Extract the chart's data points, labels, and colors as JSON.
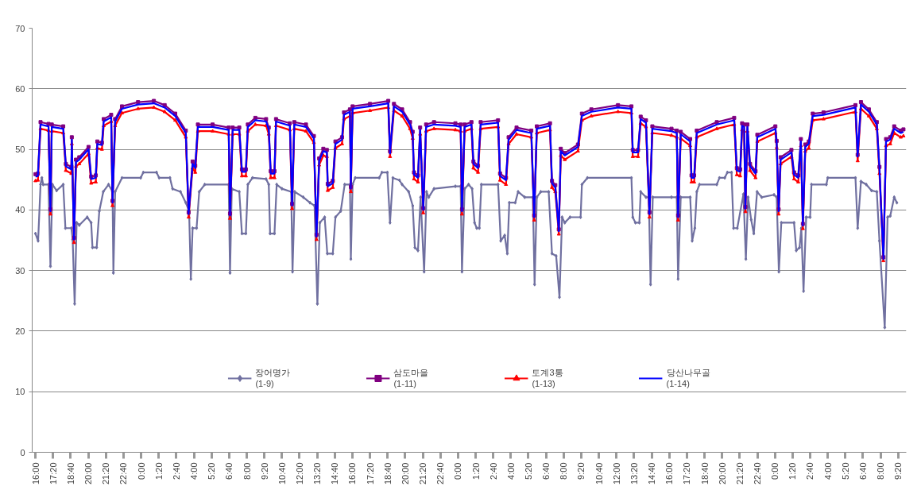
{
  "chart_data": {
    "type": "line",
    "xlim": [
      "2000-01-01T15:45",
      "2000-01-04T09:57"
    ],
    "xticks": [
      {
        "value": "2000-01-01T16:00",
        "label": "16:00"
      },
      {
        "value": "2000-01-01T17:20",
        "label": "17:20"
      },
      {
        "value": "2000-01-01T18:40",
        "label": "18:40"
      },
      {
        "value": "2000-01-01T20:00",
        "label": "20:00"
      },
      {
        "value": "2000-01-01T21:20",
        "label": "21:20"
      },
      {
        "value": "2000-01-01T22:40",
        "label": "22:40"
      },
      {
        "value": "2000-01-02T00:00",
        "label": "0:00"
      },
      {
        "value": "2000-01-02T01:20",
        "label": "1:20"
      },
      {
        "value": "2000-01-02T02:40",
        "label": "2:40"
      },
      {
        "value": "2000-01-02T04:00",
        "label": "4:00"
      },
      {
        "value": "2000-01-02T05:20",
        "label": "5:20"
      },
      {
        "value": "2000-01-02T06:40",
        "label": "6:40"
      },
      {
        "value": "2000-01-02T08:00",
        "label": "8:00"
      },
      {
        "value": "2000-01-02T09:20",
        "label": "9:20"
      },
      {
        "value": "2000-01-02T10:40",
        "label": "10:40"
      },
      {
        "value": "2000-01-02T12:00",
        "label": "12:00"
      },
      {
        "value": "2000-01-02T13:20",
        "label": "13:20"
      },
      {
        "value": "2000-01-02T14:40",
        "label": "14:40"
      },
      {
        "value": "2000-01-02T16:00",
        "label": "16:00"
      },
      {
        "value": "2000-01-02T17:20",
        "label": "17:20"
      },
      {
        "value": "2000-01-02T18:40",
        "label": "18:40"
      },
      {
        "value": "2000-01-02T20:00",
        "label": "20:00"
      },
      {
        "value": "2000-01-02T21:20",
        "label": "21:20"
      },
      {
        "value": "2000-01-02T22:40",
        "label": "22:40"
      },
      {
        "value": "2000-01-03T00:00",
        "label": "0:00"
      },
      {
        "value": "2000-01-03T01:20",
        "label": "1:20"
      },
      {
        "value": "2000-01-03T02:40",
        "label": "2:40"
      },
      {
        "value": "2000-01-03T04:00",
        "label": "4:00"
      },
      {
        "value": "2000-01-03T05:20",
        "label": "5:20"
      },
      {
        "value": "2000-01-03T06:40",
        "label": "6:40"
      },
      {
        "value": "2000-01-03T08:00",
        "label": "8:00"
      },
      {
        "value": "2000-01-03T09:20",
        "label": "9:20"
      },
      {
        "value": "2000-01-03T10:40",
        "label": "10:40"
      },
      {
        "value": "2000-01-03T12:00",
        "label": "12:00"
      },
      {
        "value": "2000-01-03T13:20",
        "label": "13:20"
      },
      {
        "value": "2000-01-03T14:40",
        "label": "14:40"
      },
      {
        "value": "2000-01-03T16:00",
        "label": "16:00"
      },
      {
        "value": "2000-01-03T17:20",
        "label": "17:20"
      },
      {
        "value": "2000-01-03T18:40",
        "label": "18:40"
      },
      {
        "value": "2000-01-03T20:00",
        "label": "20:00"
      },
      {
        "value": "2000-01-03T21:20",
        "label": "21:20"
      },
      {
        "value": "2000-01-03T22:40",
        "label": "22:40"
      },
      {
        "value": "2000-01-04T00:00",
        "label": "0:00"
      },
      {
        "value": "2000-01-04T01:20",
        "label": "1:20"
      },
      {
        "value": "2000-01-04T02:40",
        "label": "2:40"
      },
      {
        "value": "2000-01-04T04:00",
        "label": "4:00"
      },
      {
        "value": "2000-01-04T05:20",
        "label": "5:20"
      },
      {
        "value": "2000-01-04T06:40",
        "label": "6:40"
      },
      {
        "value": "2000-01-04T08:00",
        "label": "8:00"
      },
      {
        "value": "2000-01-04T09:20",
        "label": "9:20"
      }
    ],
    "ylim": [
      0,
      70
    ],
    "yticks": [
      0,
      10,
      20,
      30,
      40,
      50,
      60,
      70
    ],
    "grid": "y",
    "legend": "bottom",
    "line_style": "solid",
    "x": [
      "2000-01-01T16:00",
      "2000-01-01T16:11",
      "2000-01-01T16:23",
      "2000-01-01T16:59",
      "2000-01-01T17:08",
      "2000-01-01T17:14",
      "2000-01-01T18:06",
      "2000-01-01T18:18",
      "2000-01-01T18:43",
      "2000-01-01T18:45",
      "2000-01-01T18:55",
      "2000-01-01T19:04",
      "2000-01-01T19:19",
      "2000-01-01T20:01",
      "2000-01-01T20:13",
      "2000-01-01T20:34",
      "2000-01-01T20:41",
      "2000-01-01T21:02",
      "2000-01-01T21:10",
      "2000-01-01T21:44",
      "2000-01-01T21:50",
      "2000-01-01T22:02",
      "2000-01-01T22:33",
      "2000-01-01T23:46",
      "2000-01-02T00:58",
      "2000-01-02T01:47",
      "2000-01-02T02:35",
      "2000-01-02T03:23",
      "2000-01-02T03:36",
      "2000-01-02T03:54",
      "2000-01-02T04:06",
      "2000-01-02T04:18",
      "2000-01-02T05:25",
      "2000-01-02T06:38",
      "2000-01-02T06:44",
      "2000-01-02T06:56",
      "2000-01-02T07:26",
      "2000-01-02T07:38",
      "2000-01-02T07:56",
      "2000-01-02T08:05",
      "2000-01-02T08:39",
      "2000-01-02T09:28",
      "2000-01-02T09:40",
      "2000-01-02T09:49",
      "2000-01-02T10:06",
      "2000-01-02T10:13",
      "2000-01-02T11:16",
      "2000-01-02T11:26",
      "2000-01-02T11:36",
      "2000-01-02T12:29",
      "2000-01-02T13:05",
      "2000-01-02T13:17",
      "2000-01-02T13:29",
      "2000-01-02T13:48",
      "2000-01-02T14:04",
      "2000-01-02T14:08",
      "2000-01-02T14:31",
      "2000-01-02T14:43",
      "2000-01-02T15:13",
      "2000-01-02T15:22",
      "2000-01-02T15:49",
      "2000-01-02T15:53",
      "2000-01-02T16:01",
      "2000-01-02T17:20",
      "2000-01-02T18:43",
      "2000-01-02T18:51",
      "2000-01-02T19:09",
      "2000-01-02T19:46",
      "2000-01-02T20:22",
      "2000-01-02T20:34",
      "2000-01-02T20:40",
      "2000-01-02T20:58",
      "2000-01-02T21:08",
      "2000-01-02T21:22",
      "2000-01-02T21:35",
      "2000-01-02T22:11",
      "2000-01-02T23:48",
      "2000-01-03T00:12",
      "2000-01-03T00:18",
      "2000-01-03T00:30",
      "2000-01-03T01:01",
      "2000-01-03T01:10",
      "2000-01-03T01:31",
      "2000-01-03T01:43",
      "2000-01-03T03:02",
      "2000-01-03T03:11",
      "2000-01-03T03:38",
      "2000-01-03T03:50",
      "2000-01-03T04:26",
      "2000-01-03T05:33",
      "2000-01-03T05:46",
      "2000-01-03T05:58",
      "2000-01-03T06:58",
      "2000-01-03T07:07",
      "2000-01-03T07:22",
      "2000-01-03T07:38",
      "2000-01-03T07:47",
      "2000-01-03T08:05",
      "2000-01-03T09:05",
      "2000-01-03T09:23",
      "2000-01-03T10:06",
      "2000-01-03T12:07",
      "2000-01-03T13:08",
      "2000-01-03T13:14",
      "2000-01-03T13:38",
      "2000-01-03T13:50",
      "2000-01-03T14:14",
      "2000-01-03T14:30",
      "2000-01-03T14:43",
      "2000-01-03T16:10",
      "2000-01-03T16:34",
      "2000-01-03T16:40",
      "2000-01-03T16:52",
      "2000-01-03T17:35",
      "2000-01-03T17:41",
      "2000-01-03T17:53",
      "2000-01-03T18:05",
      "2000-01-03T19:36",
      "2000-01-03T20:55",
      "2000-01-03T21:07",
      "2000-01-03T21:22",
      "2000-01-03T21:31",
      "2000-01-03T21:40",
      "2000-01-03T21:46",
      "2000-01-03T21:55",
      "2000-01-03T22:07",
      "2000-01-03T22:32",
      "2000-01-03T22:40",
      "2000-01-04T00:02",
      "2000-01-04T00:08",
      "2000-01-04T00:17",
      "2000-01-04T00:26",
      "2000-01-04T01:15",
      "2000-01-04T01:27",
      "2000-01-04T01:46",
      "2000-01-04T01:58",
      "2000-01-04T02:07",
      "2000-01-04T02:18",
      "2000-01-04T02:34",
      "2000-01-04T02:52",
      "2000-01-04T03:41",
      "2000-01-04T06:06",
      "2000-01-04T06:16",
      "2000-01-04T06:31",
      "2000-01-04T07:07",
      "2000-01-04T07:43",
      "2000-01-04T07:55",
      "2000-01-04T08:13",
      "2000-01-04T08:25",
      "2000-01-04T08:44",
      "2000-01-04T09:02",
      "2000-01-04T09:32",
      "2000-01-04T09:44"
    ],
    "series": [
      {
        "name": "장어명가\n(1-9)",
        "color": "#7070a0",
        "marker": "diamond",
        "x": [
          "2000-01-01T16:00",
          "2000-01-01T16:12",
          "2000-01-01T16:23",
          "2000-01-01T16:29",
          "2000-01-01T16:35",
          "2000-01-01T16:59",
          "2000-01-01T17:08",
          "2000-01-01T17:17",
          "2000-01-01T17:36",
          "2000-01-01T18:06",
          "2000-01-01T18:16",
          "2000-01-01T18:43",
          "2000-01-01T18:49",
          "2000-01-01T18:58",
          "2000-01-01T19:07",
          "2000-01-01T19:19",
          "2000-01-01T19:55",
          "2000-01-01T20:13",
          "2000-01-01T20:19",
          "2000-01-01T20:38",
          "2000-01-01T20:50",
          "2000-01-01T21:08",
          "2000-01-01T21:32",
          "2000-01-01T21:50",
          "2000-01-01T21:54",
          "2000-01-01T22:02",
          "2000-01-01T22:33",
          "2000-01-01T23:58",
          "2000-01-02T00:10",
          "2000-01-02T01:10",
          "2000-01-02T01:22",
          "2000-01-02T02:11",
          "2000-01-02T02:23",
          "2000-01-02T02:59",
          "2000-01-02T03:23",
          "2000-01-02T03:38",
          "2000-01-02T03:46",
          "2000-01-02T03:54",
          "2000-01-02T04:12",
          "2000-01-02T04:24",
          "2000-01-02T04:49",
          "2000-01-02T06:38",
          "2000-01-02T06:44",
          "2000-01-02T06:52",
          "2000-01-02T07:26",
          "2000-01-02T07:38",
          "2000-01-02T07:56",
          "2000-01-02T08:05",
          "2000-01-02T08:26",
          "2000-01-02T09:28",
          "2000-01-02T09:40",
          "2000-01-02T09:46",
          "2000-01-02T10:06",
          "2000-01-02T10:16",
          "2000-01-02T10:40",
          "2000-01-02T11:22",
          "2000-01-02T11:28",
          "2000-01-02T11:38",
          "2000-01-02T12:17",
          "2000-01-02T12:47",
          "2000-01-02T13:08",
          "2000-01-02T13:21",
          "2000-01-02T13:32",
          "2000-01-02T13:54",
          "2000-01-02T14:06",
          "2000-01-02T14:31",
          "2000-01-02T14:43",
          "2000-01-02T15:07",
          "2000-01-02T15:25",
          "2000-01-02T15:49",
          "2000-01-02T15:53",
          "2000-01-02T16:01",
          "2000-01-02T16:13",
          "2000-01-02T18:02",
          "2000-01-02T18:14",
          "2000-01-02T18:39",
          "2000-01-02T18:51",
          "2000-01-02T19:04",
          "2000-01-02T19:34",
          "2000-01-02T19:46",
          "2000-01-02T20:16",
          "2000-01-02T20:34",
          "2000-01-02T20:44",
          "2000-01-02T20:58",
          "2000-01-02T21:10",
          "2000-01-02T21:26",
          "2000-01-02T21:37",
          "2000-01-02T21:47",
          "2000-01-02T22:11",
          "2000-01-02T23:48",
          "2000-01-03T00:12",
          "2000-01-03T00:18",
          "2000-01-03T00:30",
          "2000-01-03T00:48",
          "2000-01-03T01:04",
          "2000-01-03T01:15",
          "2000-01-03T01:25",
          "2000-01-03T01:37",
          "2000-01-03T01:46",
          "2000-01-03T03:02",
          "2000-01-03T03:14",
          "2000-01-03T03:32",
          "2000-01-03T03:44",
          "2000-01-03T03:53",
          "2000-01-03T04:20",
          "2000-01-03T04:33",
          "2000-01-03T05:03",
          "2000-01-03T05:40",
          "2000-01-03T05:48",
          "2000-01-03T05:58",
          "2000-01-03T06:16",
          "2000-01-03T06:52",
          "2000-01-03T07:07",
          "2000-01-03T07:26",
          "2000-01-03T07:41",
          "2000-01-03T07:53",
          "2000-01-03T08:05",
          "2000-01-03T08:29",
          "2000-01-03T09:17",
          "2000-01-03T09:23",
          "2000-01-03T09:48",
          "2000-01-03T13:08",
          "2000-01-03T13:14",
          "2000-01-03T13:26",
          "2000-01-03T13:44",
          "2000-01-03T13:50",
          "2000-01-03T14:14",
          "2000-01-03T14:27",
          "2000-01-03T14:35",
          "2000-01-03T14:45",
          "2000-01-03T16:10",
          "2000-01-03T16:34",
          "2000-01-03T16:40",
          "2000-01-03T16:52",
          "2000-01-03T17:35",
          "2000-01-03T17:44",
          "2000-01-03T17:56",
          "2000-01-03T18:05",
          "2000-01-03T18:17",
          "2000-01-03T19:36",
          "2000-01-03T19:48",
          "2000-01-03T20:12",
          "2000-01-03T20:24",
          "2000-01-03T20:43",
          "2000-01-03T20:52",
          "2000-01-03T21:09",
          "2000-01-03T21:37",
          "2000-01-03T21:48",
          "2000-01-03T21:58",
          "2000-01-03T22:12",
          "2000-01-03T22:24",
          "2000-01-03T22:39",
          "2000-01-03T23:00",
          "2000-01-03T23:56",
          "2000-01-04T00:08",
          "2000-01-04T00:18",
          "2000-01-04T00:29",
          "2000-01-04T01:27",
          "2000-01-04T01:37",
          "2000-01-04T01:52",
          "2000-01-04T02:00",
          "2000-01-04T02:10",
          "2000-01-04T02:22",
          "2000-01-04T02:40",
          "2000-01-04T02:46",
          "2000-01-04T03:54",
          "2000-01-04T04:00",
          "2000-01-04T06:06",
          "2000-01-04T06:16",
          "2000-01-04T06:31",
          "2000-01-04T06:55",
          "2000-01-04T07:19",
          "2000-01-04T07:43",
          "2000-01-04T07:55",
          "2000-01-04T08:19",
          "2000-01-04T08:32",
          "2000-01-04T08:44",
          "2000-01-04T09:02",
          "2000-01-04T09:14"
        ],
        "values": [
          36.1,
          34.9,
          44.2,
          45.3,
          44.2,
          44.2,
          30.7,
          44.2,
          43.2,
          44.2,
          37.0,
          37.0,
          35.1,
          24.5,
          37.9,
          37.5,
          38.8,
          37.9,
          33.8,
          33.8,
          39.8,
          43.0,
          44.2,
          43.0,
          29.6,
          43.0,
          45.3,
          45.3,
          46.2,
          46.2,
          45.3,
          45.3,
          43.5,
          43.0,
          41.2,
          39.8,
          28.6,
          37.0,
          37.0,
          43.0,
          44.2,
          44.2,
          29.6,
          43.5,
          43.0,
          36.1,
          36.1,
          44.2,
          45.3,
          45.1,
          44.2,
          36.1,
          36.1,
          44.2,
          43.5,
          43.0,
          29.8,
          43.0,
          42.1,
          41.2,
          40.7,
          24.5,
          37.9,
          38.8,
          32.8,
          32.8,
          38.8,
          39.8,
          44.2,
          44.2,
          31.9,
          44.2,
          45.3,
          45.3,
          46.2,
          46.2,
          37.9,
          45.3,
          44.9,
          44.2,
          43.0,
          40.7,
          33.8,
          33.3,
          42.1,
          29.8,
          43.0,
          42.1,
          43.5,
          43.9,
          43.9,
          29.8,
          43.5,
          44.2,
          43.5,
          37.9,
          37.0,
          37.0,
          44.2,
          44.2,
          34.9,
          35.8,
          32.8,
          41.2,
          41.2,
          43.0,
          42.1,
          42.1,
          27.7,
          42.1,
          43.0,
          43.0,
          32.8,
          32.4,
          25.6,
          38.8,
          37.9,
          38.8,
          38.8,
          44.2,
          45.3,
          45.3,
          38.8,
          37.9,
          37.9,
          43.0,
          42.1,
          42.1,
          27.7,
          42.1,
          42.1,
          42.1,
          28.6,
          42.1,
          42.1,
          34.9,
          37.0,
          43.0,
          44.2,
          44.2,
          45.3,
          45.3,
          46.2,
          46.2,
          37.0,
          37.0,
          42.6,
          31.9,
          42.1,
          38.4,
          36.1,
          43.0,
          42.1,
          42.5,
          42.1,
          29.8,
          37.9,
          37.9,
          33.3,
          33.8,
          37.0,
          26.6,
          38.8,
          38.8,
          44.2,
          44.2,
          45.3,
          45.3,
          37.0,
          44.7,
          44.2,
          43.2,
          43.0,
          34.9,
          20.6,
          38.8,
          39.0,
          42.1,
          41.2
        ]
      },
      {
        "name": "삼도마을\n(1-11)",
        "color": "#800080",
        "marker": "square",
        "values": [
          45.9,
          46.0,
          54.5,
          54.2,
          40.1,
          54.1,
          53.8,
          47.6,
          47.1,
          52.0,
          35.4,
          48.3,
          48.7,
          50.4,
          45.5,
          45.7,
          51.3,
          51.1,
          55.0,
          55.7,
          41.5,
          55.0,
          57.1,
          57.8,
          58.0,
          57.3,
          55.9,
          53.1,
          39.6,
          48.0,
          47.3,
          54.1,
          54.1,
          53.6,
          39.4,
          53.6,
          53.6,
          46.7,
          46.7,
          54.1,
          55.2,
          55.0,
          53.6,
          46.4,
          46.4,
          55.0,
          54.3,
          41.0,
          54.5,
          54.1,
          52.2,
          35.9,
          48.5,
          50.1,
          49.9,
          44.3,
          44.8,
          51.3,
          52.0,
          56.1,
          56.6,
          43.8,
          57.1,
          57.5,
          58.0,
          49.7,
          57.5,
          56.6,
          54.5,
          52.9,
          46.2,
          45.7,
          53.6,
          40.3,
          54.1,
          54.5,
          54.3,
          54.1,
          40.1,
          54.1,
          54.5,
          48.0,
          47.3,
          54.5,
          54.8,
          46.0,
          45.3,
          52.0,
          53.6,
          53.1,
          39.1,
          53.8,
          54.3,
          44.8,
          44.1,
          36.8,
          50.1,
          49.4,
          50.8,
          55.9,
          56.6,
          57.3,
          57.1,
          49.9,
          49.9,
          55.4,
          54.8,
          39.6,
          53.8,
          53.4,
          53.1,
          39.1,
          52.9,
          51.7,
          45.7,
          45.7,
          53.1,
          54.5,
          55.2,
          46.9,
          46.7,
          54.3,
          54.1,
          40.5,
          54.1,
          47.6,
          46.4,
          52.4,
          53.8,
          51.4,
          40.1,
          48.7,
          49.9,
          46.2,
          45.7,
          51.7,
          37.7,
          50.8,
          51.3,
          55.9,
          56.1,
          57.3,
          49.1,
          57.8,
          56.6,
          54.5,
          47.1,
          32.2,
          51.7,
          52.0,
          53.8,
          53.1,
          53.3
        ]
      },
      {
        "name": "토계3통\n(1-13)",
        "color": "#ff0000",
        "marker": "triangle",
        "values": [
          44.8,
          44.9,
          53.4,
          53.1,
          39.3,
          53.0,
          52.7,
          46.5,
          46.0,
          50.9,
          34.6,
          47.2,
          47.6,
          49.3,
          44.4,
          44.6,
          50.2,
          50.0,
          53.9,
          54.6,
          40.7,
          53.9,
          56.0,
          56.7,
          56.9,
          56.2,
          54.8,
          52.0,
          38.8,
          46.9,
          46.2,
          53.0,
          53.0,
          52.5,
          38.6,
          52.5,
          52.5,
          45.6,
          45.6,
          53.0,
          54.1,
          53.9,
          52.5,
          45.3,
          45.3,
          53.9,
          53.2,
          40.2,
          53.4,
          53.0,
          51.1,
          35.1,
          47.4,
          49.0,
          48.8,
          43.2,
          43.7,
          50.2,
          50.9,
          55.0,
          55.5,
          43.0,
          56.0,
          56.4,
          56.9,
          48.8,
          56.4,
          55.5,
          53.4,
          51.8,
          45.1,
          44.6,
          52.5,
          39.5,
          53.0,
          53.4,
          53.2,
          53.0,
          39.3,
          53.0,
          53.4,
          46.9,
          46.2,
          53.4,
          53.7,
          44.9,
          44.2,
          50.9,
          52.5,
          52.0,
          38.3,
          52.7,
          53.2,
          43.7,
          43.0,
          36.0,
          49.0,
          48.3,
          49.7,
          54.8,
          55.5,
          56.2,
          56.0,
          48.8,
          48.8,
          54.3,
          53.7,
          38.8,
          52.7,
          52.3,
          52.0,
          38.3,
          51.8,
          50.6,
          44.6,
          44.6,
          52.0,
          53.4,
          54.1,
          45.8,
          45.6,
          53.2,
          53.0,
          39.7,
          53.0,
          46.5,
          45.3,
          51.3,
          52.7,
          50.3,
          39.3,
          47.6,
          48.8,
          45.1,
          44.6,
          50.6,
          36.9,
          49.7,
          50.2,
          54.8,
          55.0,
          56.2,
          48.1,
          56.7,
          55.5,
          53.4,
          46.0,
          31.6,
          50.6,
          50.9,
          52.7,
          52.0,
          52.2
        ]
      },
      {
        "name": "당산나무골\n(1-14)",
        "color": "#0000ff",
        "marker": "none",
        "values": [
          45.5,
          45.6,
          54.1,
          53.8,
          39.8,
          53.7,
          53.4,
          47.2,
          46.7,
          51.6,
          35.1,
          47.9,
          48.3,
          50.0,
          45.1,
          45.3,
          50.9,
          50.7,
          54.6,
          55.3,
          41.2,
          54.6,
          56.7,
          57.4,
          57.6,
          56.9,
          55.5,
          52.7,
          39.3,
          47.6,
          46.9,
          53.7,
          53.7,
          53.2,
          39.1,
          53.2,
          53.2,
          46.3,
          46.3,
          53.7,
          54.8,
          54.6,
          53.2,
          46.0,
          46.0,
          54.6,
          53.9,
          40.7,
          54.1,
          53.7,
          51.8,
          35.6,
          48.1,
          49.7,
          49.5,
          43.9,
          44.4,
          50.9,
          51.6,
          55.7,
          56.2,
          43.5,
          56.7,
          57.1,
          57.6,
          49.3,
          57.1,
          56.2,
          54.1,
          52.5,
          45.8,
          45.3,
          53.2,
          40.0,
          53.7,
          54.1,
          53.9,
          53.7,
          39.8,
          53.7,
          54.1,
          47.6,
          46.9,
          54.1,
          54.4,
          45.6,
          44.9,
          51.6,
          53.2,
          52.7,
          38.8,
          53.4,
          53.9,
          44.4,
          43.7,
          36.5,
          49.7,
          49.0,
          50.4,
          55.5,
          56.2,
          56.9,
          56.7,
          49.5,
          49.5,
          55.0,
          54.4,
          39.3,
          53.4,
          53.0,
          52.7,
          38.8,
          52.5,
          51.3,
          45.3,
          45.3,
          52.7,
          54.1,
          54.8,
          46.5,
          46.3,
          53.9,
          53.7,
          40.2,
          53.7,
          47.2,
          46.0,
          52.0,
          53.4,
          51.0,
          39.8,
          48.3,
          49.5,
          45.8,
          45.3,
          51.3,
          37.4,
          50.4,
          50.9,
          55.5,
          55.7,
          56.9,
          48.8,
          57.4,
          56.2,
          54.1,
          46.7,
          31.9,
          51.3,
          51.6,
          53.4,
          52.7,
          52.9
        ]
      }
    ]
  }
}
